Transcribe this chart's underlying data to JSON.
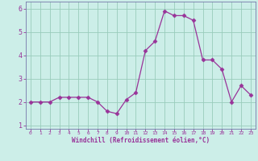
{
  "x": [
    0,
    1,
    2,
    3,
    4,
    5,
    6,
    7,
    8,
    9,
    10,
    11,
    12,
    13,
    14,
    15,
    16,
    17,
    18,
    19,
    20,
    21,
    22,
    23
  ],
  "y": [
    2.0,
    2.0,
    2.0,
    2.2,
    2.2,
    2.2,
    2.2,
    2.0,
    1.6,
    1.5,
    2.1,
    2.4,
    4.2,
    4.6,
    5.9,
    5.7,
    5.7,
    5.5,
    3.8,
    3.8,
    3.4,
    2.0,
    2.7,
    2.3
  ],
  "line_color": "#993399",
  "marker": "D",
  "marker_size": 2.5,
  "xlabel": "Windchill (Refroidissement éolien,°C)",
  "xlim": [
    -0.5,
    23.5
  ],
  "ylim": [
    0.85,
    6.3
  ],
  "yticks": [
    1,
    2,
    3,
    4,
    5,
    6
  ],
  "xticks": [
    0,
    1,
    2,
    3,
    4,
    5,
    6,
    7,
    8,
    9,
    10,
    11,
    12,
    13,
    14,
    15,
    16,
    17,
    18,
    19,
    20,
    21,
    22,
    23
  ],
  "grid_color": "#99ccbb",
  "bg_color": "#cceee8",
  "spine_color": "#7777aa",
  "label_color": "#993399",
  "tick_color": "#993399"
}
